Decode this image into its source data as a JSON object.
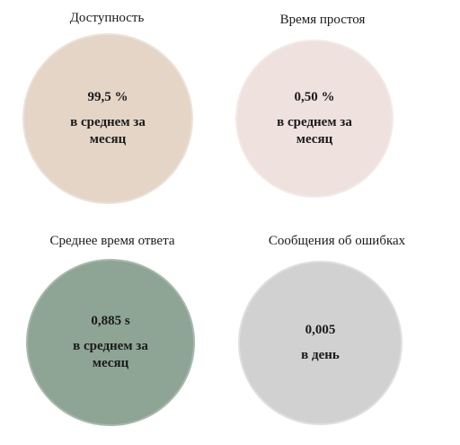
{
  "metrics": [
    {
      "title": "Доступность",
      "value": "99,5 %",
      "unit": "в среднем за месяц",
      "color": "#e4d5c7"
    },
    {
      "title": "Время простоя",
      "value": "0,50 %",
      "unit": "в среднем за месяц",
      "color": "#eee1de"
    },
    {
      "title": "Среднее время ответа",
      "value": "0,885 s",
      "unit": "в среднем за месяц",
      "color": "#8ea495"
    },
    {
      "title": "Сообщения об ошибках",
      "value": "0,005",
      "unit": "в день",
      "color": "#d2d1d1"
    }
  ]
}
